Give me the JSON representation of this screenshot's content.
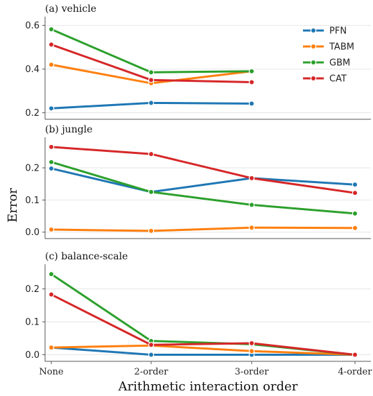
{
  "chart_data": {
    "type": "line",
    "xlabel": "Arithmetic interaction order",
    "ylabel": "Error",
    "x_categories": [
      "None",
      "2-order",
      "3-order",
      "4-order"
    ],
    "legend": {
      "placement": "top-right",
      "entries": [
        "PFN",
        "TABM",
        "GBM",
        "CAT"
      ]
    },
    "colors": {
      "PFN": "#1f77b4",
      "TABM": "#ff7f0e",
      "GBM": "#2ca02c",
      "CAT": "#d62728"
    },
    "grid": "horizontal",
    "panels": [
      {
        "title": "(a)  vehicle",
        "ylim": [
          0.17,
          0.64
        ],
        "yticks": [
          0.2,
          0.4,
          0.6
        ],
        "ytick_labels": [
          "0.2",
          "0.4",
          "0.6"
        ],
        "series": [
          {
            "name": "PFN",
            "values": [
              0.22,
              0.245,
              0.242,
              null
            ]
          },
          {
            "name": "TABM",
            "values": [
              0.42,
              0.335,
              0.39,
              null
            ]
          },
          {
            "name": "GBM",
            "values": [
              0.582,
              0.385,
              0.39,
              null
            ]
          },
          {
            "name": "CAT",
            "values": [
              0.512,
              0.35,
              0.34,
              null
            ]
          }
        ]
      },
      {
        "title": "(b)  jungle",
        "ylim": [
          -0.02,
          0.295
        ],
        "yticks": [
          0.0,
          0.1,
          0.2
        ],
        "ytick_labels": [
          "0.0",
          "0.1",
          "0.2"
        ],
        "series": [
          {
            "name": "PFN",
            "values": [
              0.198,
              0.125,
              0.168,
              0.148
            ]
          },
          {
            "name": "TABM",
            "values": [
              0.008,
              0.004,
              0.014,
              0.013
            ]
          },
          {
            "name": "GBM",
            "values": [
              0.218,
              0.125,
              0.085,
              0.058
            ]
          },
          {
            "name": "CAT",
            "values": [
              0.265,
              0.243,
              0.168,
              0.122
            ]
          }
        ]
      },
      {
        "title": "(c)  balance-scale",
        "ylim": [
          -0.02,
          0.275
        ],
        "yticks": [
          0.0,
          0.1,
          0.2
        ],
        "ytick_labels": [
          "0.0",
          "0.1",
          "0.2"
        ],
        "series": [
          {
            "name": "PFN",
            "values": [
              0.022,
              0.0,
              0.0,
              0.0
            ]
          },
          {
            "name": "TABM",
            "values": [
              0.022,
              0.028,
              0.011,
              0.0
            ]
          },
          {
            "name": "GBM",
            "values": [
              0.245,
              0.042,
              0.032,
              0.0
            ]
          },
          {
            "name": "CAT",
            "values": [
              0.183,
              0.03,
              0.035,
              0.0
            ]
          }
        ]
      }
    ]
  }
}
